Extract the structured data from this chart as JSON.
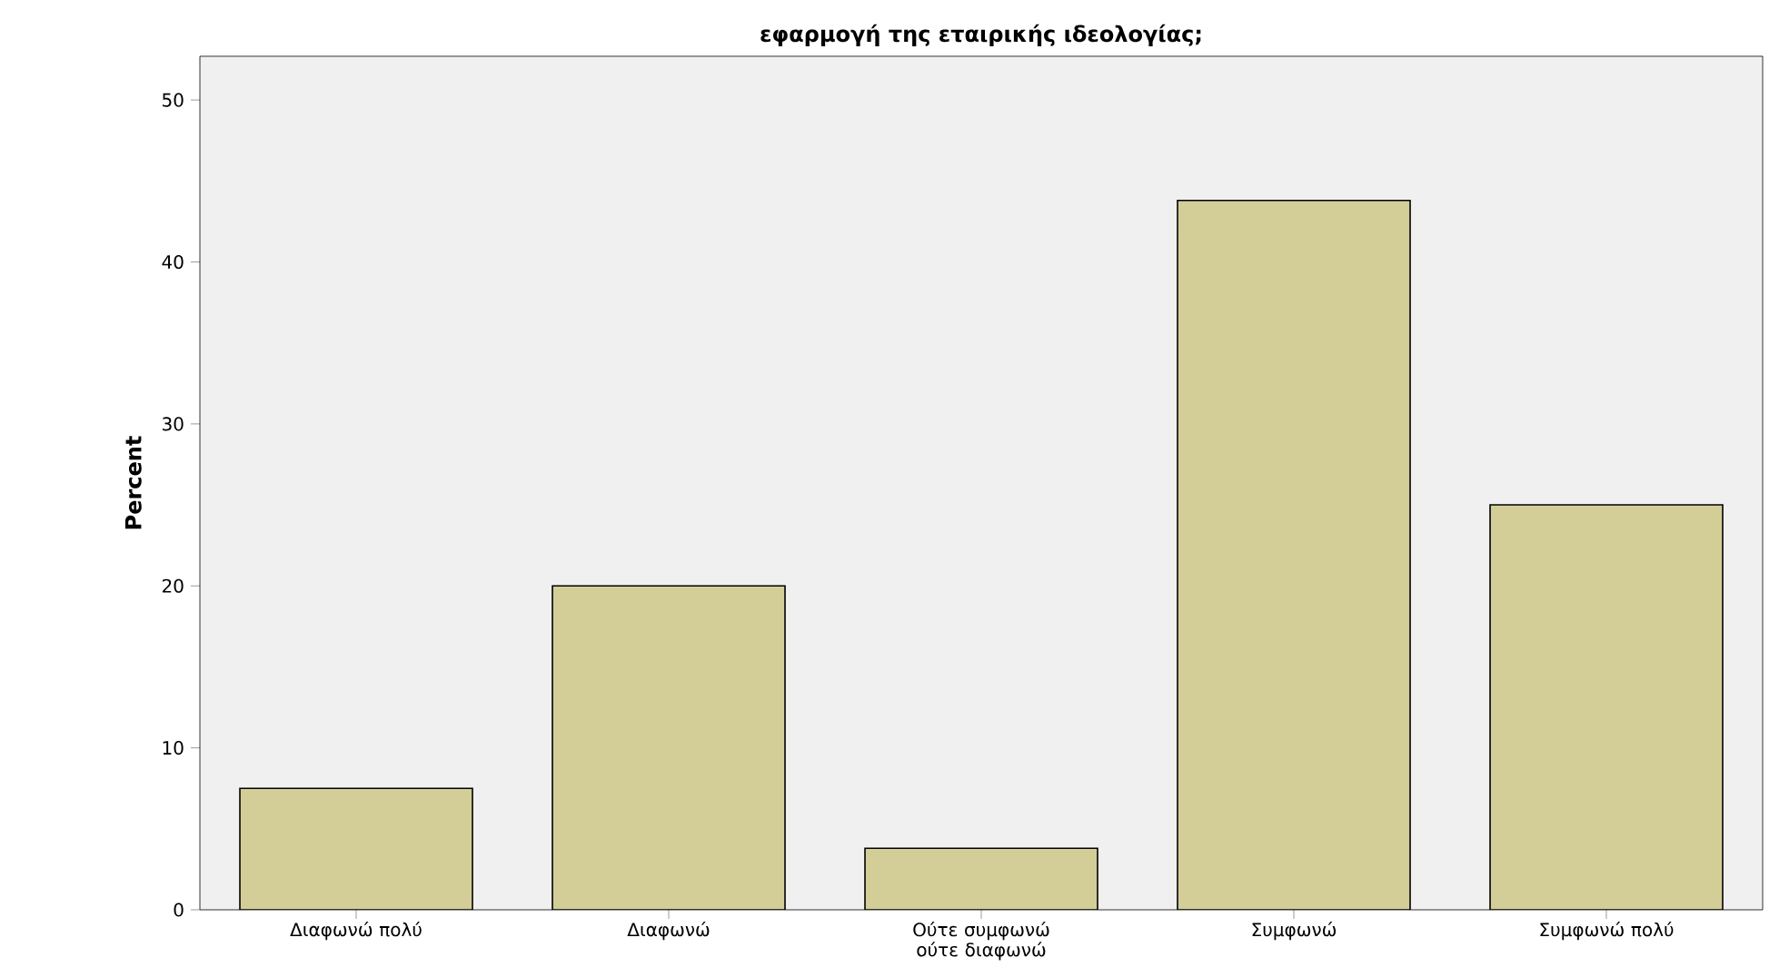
{
  "chart_data": {
    "type": "bar",
    "title": "εφαρμογή της εταιρικής ιδεολογίας;",
    "ylabel": "Percent",
    "categories": [
      "Διαφωνώ πολύ",
      "Διαφωνώ",
      "Ούτε συμφωνώ ούτε διαφωνώ",
      "Συμφωνώ",
      "Συμφωνώ πολύ"
    ],
    "values": [
      7.5,
      20.0,
      3.8,
      43.8,
      25.0
    ],
    "color": "#d3ce97",
    "ylim": [
      0,
      52.7
    ],
    "yticks": [
      0,
      10,
      20,
      30,
      40,
      50
    ],
    "grid": false
  }
}
